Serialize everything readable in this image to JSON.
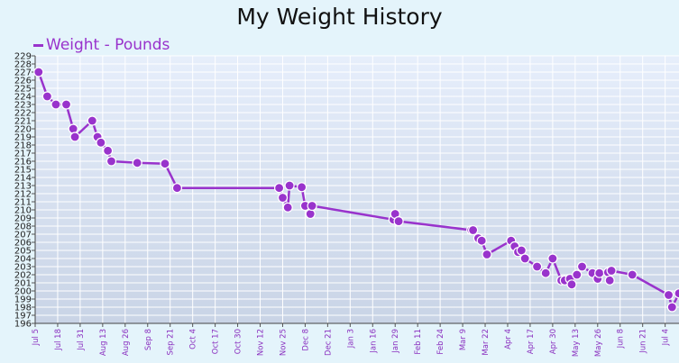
{
  "colors": {
    "series": "#9933cc",
    "point_stroke": "#ffffff",
    "grid": "#ffffff",
    "plot_top": "#e6eefb",
    "plot_bottom": "#c9d4e6",
    "page_background": "#e4f4fb"
  },
  "chart_data": {
    "type": "line",
    "title": "My Weight History",
    "legend_position": "top-left",
    "grid": true,
    "series": [
      {
        "name": "Weight - Pounds",
        "points": [
          [
            "2012-07-07",
            227
          ],
          [
            "2012-07-12",
            224
          ],
          [
            "2012-07-17",
            223
          ],
          [
            "2012-07-23",
            223
          ],
          [
            "2012-07-27",
            220
          ],
          [
            "2012-07-28",
            219
          ],
          [
            "2012-08-07",
            221
          ],
          [
            "2012-08-10",
            219
          ],
          [
            "2012-08-12",
            218.3
          ],
          [
            "2012-08-16",
            217.3
          ],
          [
            "2012-08-18",
            216
          ],
          [
            "2012-09-02",
            215.8
          ],
          [
            "2012-09-18",
            215.7
          ],
          [
            "2012-09-25",
            212.7
          ],
          [
            "2012-11-23",
            212.7
          ],
          [
            "2012-11-25",
            211.5
          ],
          [
            "2012-11-28",
            210.3
          ],
          [
            "2012-11-29",
            213
          ],
          [
            "2012-12-06",
            212.8
          ],
          [
            "2012-12-08",
            210.5
          ],
          [
            "2012-12-11",
            209.5
          ],
          [
            "2012-12-12",
            210.5
          ],
          [
            "2013-01-28",
            208.8
          ],
          [
            "2013-01-29",
            209.5
          ],
          [
            "2013-01-31",
            208.6
          ],
          [
            "2013-03-14",
            207.5
          ],
          [
            "2013-03-15",
            207.5
          ],
          [
            "2013-03-18",
            206.5
          ],
          [
            "2013-03-20",
            206.2
          ],
          [
            "2013-03-23",
            204.5
          ],
          [
            "2013-04-06",
            206.2
          ],
          [
            "2013-04-08",
            205.5
          ],
          [
            "2013-04-10",
            204.8
          ],
          [
            "2013-04-12",
            205
          ],
          [
            "2013-04-14",
            204
          ],
          [
            "2013-04-21",
            203
          ],
          [
            "2013-04-26",
            202.2
          ],
          [
            "2013-04-30",
            204
          ],
          [
            "2013-05-05",
            201.3
          ],
          [
            "2013-05-07",
            201.3
          ],
          [
            "2013-05-10",
            201.5
          ],
          [
            "2013-05-11",
            200.8
          ],
          [
            "2013-05-14",
            202
          ],
          [
            "2013-05-17",
            203
          ],
          [
            "2013-05-23",
            202.2
          ],
          [
            "2013-05-26",
            201.5
          ],
          [
            "2013-05-27",
            202.2
          ],
          [
            "2013-06-01",
            202.3
          ],
          [
            "2013-06-02",
            201.3
          ],
          [
            "2013-06-03",
            202.5
          ],
          [
            "2013-06-15",
            202
          ],
          [
            "2013-07-06",
            199.5
          ],
          [
            "2013-07-08",
            198
          ],
          [
            "2013-07-12",
            199.7
          ]
        ]
      }
    ],
    "x_axis": {
      "range": [
        "2012-07-05",
        "2013-07-12"
      ],
      "ticks": [
        [
          "2012-07-05",
          "Jul 5"
        ],
        [
          "2012-07-18",
          "Jul 18"
        ],
        [
          "2012-07-31",
          "Jul 31"
        ],
        [
          "2012-08-13",
          "Aug 13"
        ],
        [
          "2012-08-26",
          "Aug 26"
        ],
        [
          "2012-09-08",
          "Sep 8"
        ],
        [
          "2012-09-21",
          "Sep 21"
        ],
        [
          "2012-10-04",
          "Oct 4"
        ],
        [
          "2012-10-17",
          "Oct 17"
        ],
        [
          "2012-10-30",
          "Oct 30"
        ],
        [
          "2012-11-12",
          "Nov 12"
        ],
        [
          "2012-11-25",
          "Nov 25"
        ],
        [
          "2012-12-08",
          "Dec 8"
        ],
        [
          "2012-12-21",
          "Dec 21"
        ],
        [
          "2013-01-03",
          "Jan 3"
        ],
        [
          "2013-01-16",
          "Jan 16"
        ],
        [
          "2013-01-29",
          "Jan 29"
        ],
        [
          "2013-02-11",
          "Feb 11"
        ],
        [
          "2013-02-24",
          "Feb 24"
        ],
        [
          "2013-03-09",
          "Mar 9"
        ],
        [
          "2013-03-22",
          "Mar 22"
        ],
        [
          "2013-04-04",
          "Apr 4"
        ],
        [
          "2013-04-17",
          "Apr 17"
        ],
        [
          "2013-04-30",
          "Apr 30"
        ],
        [
          "2013-05-13",
          "May 13"
        ],
        [
          "2013-05-26",
          "May 26"
        ],
        [
          "2013-06-08",
          "Jun 8"
        ],
        [
          "2013-06-21",
          "Jun 21"
        ],
        [
          "2013-07-04",
          "Jul 4"
        ]
      ]
    },
    "y_axis": {
      "range": [
        196,
        229
      ],
      "ticks": [
        196,
        197,
        198,
        199,
        200,
        201,
        202,
        203,
        204,
        205,
        206,
        207,
        208,
        209,
        210,
        211,
        212,
        213,
        214,
        215,
        216,
        217,
        218,
        219,
        220,
        221,
        222,
        223,
        224,
        225,
        226,
        227,
        228,
        229
      ]
    }
  }
}
